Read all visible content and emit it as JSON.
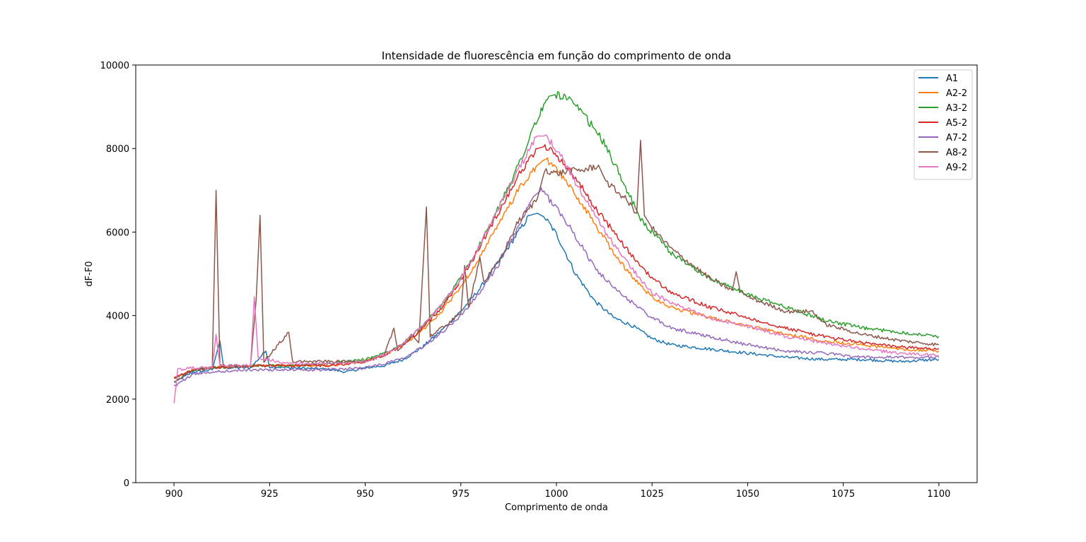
{
  "chart_data": {
    "type": "line",
    "title": "Intensidade de fluorescência em função do comprimento de onda",
    "xlabel": "Comprimento de onda",
    "ylabel": "dF-F0",
    "xlim": [
      890,
      1110
    ],
    "ylim": [
      0,
      10000
    ],
    "xticks": [
      900,
      925,
      950,
      975,
      1000,
      1025,
      1050,
      1075,
      1100
    ],
    "yticks": [
      0,
      2000,
      4000,
      6000,
      8000,
      10000
    ],
    "grid": false,
    "legend_position": "top-right",
    "series": [
      {
        "name": "A1",
        "color": "#1f77b4",
        "points": [
          [
            900,
            2400
          ],
          [
            905,
            2650
          ],
          [
            910,
            2700
          ],
          [
            912,
            3400
          ],
          [
            913,
            2750
          ],
          [
            920,
            2750
          ],
          [
            924,
            3150
          ],
          [
            925,
            2780
          ],
          [
            930,
            2750
          ],
          [
            940,
            2720
          ],
          [
            945,
            2650
          ],
          [
            950,
            2750
          ],
          [
            955,
            2800
          ],
          [
            960,
            2950
          ],
          [
            965,
            3250
          ],
          [
            970,
            3650
          ],
          [
            975,
            4100
          ],
          [
            980,
            4650
          ],
          [
            985,
            5300
          ],
          [
            990,
            6000
          ],
          [
            993,
            6400
          ],
          [
            995,
            6450
          ],
          [
            997,
            6350
          ],
          [
            1000,
            5950
          ],
          [
            1005,
            5000
          ],
          [
            1010,
            4350
          ],
          [
            1015,
            3950
          ],
          [
            1020,
            3750
          ],
          [
            1025,
            3450
          ],
          [
            1030,
            3300
          ],
          [
            1040,
            3200
          ],
          [
            1050,
            3100
          ],
          [
            1060,
            3000
          ],
          [
            1070,
            2950
          ],
          [
            1080,
            2950
          ],
          [
            1090,
            2900
          ],
          [
            1100,
            2950
          ]
        ]
      },
      {
        "name": "A2-2",
        "color": "#ff7f0e",
        "points": [
          [
            900,
            2500
          ],
          [
            905,
            2700
          ],
          [
            910,
            2750
          ],
          [
            920,
            2800
          ],
          [
            930,
            2800
          ],
          [
            940,
            2800
          ],
          [
            950,
            2900
          ],
          [
            955,
            3050
          ],
          [
            960,
            3300
          ],
          [
            965,
            3650
          ],
          [
            970,
            4100
          ],
          [
            975,
            4700
          ],
          [
            980,
            5400
          ],
          [
            985,
            6200
          ],
          [
            990,
            7000
          ],
          [
            995,
            7600
          ],
          [
            997,
            7750
          ],
          [
            1000,
            7500
          ],
          [
            1005,
            6900
          ],
          [
            1010,
            6200
          ],
          [
            1015,
            5500
          ],
          [
            1020,
            4900
          ],
          [
            1025,
            4450
          ],
          [
            1030,
            4200
          ],
          [
            1040,
            3950
          ],
          [
            1050,
            3750
          ],
          [
            1060,
            3550
          ],
          [
            1070,
            3400
          ],
          [
            1080,
            3300
          ],
          [
            1090,
            3200
          ],
          [
            1100,
            3150
          ]
        ]
      },
      {
        "name": "A3-2",
        "color": "#2ca02c",
        "points": [
          [
            900,
            2500
          ],
          [
            905,
            2700
          ],
          [
            910,
            2750
          ],
          [
            920,
            2800
          ],
          [
            930,
            2800
          ],
          [
            940,
            2850
          ],
          [
            950,
            2950
          ],
          [
            955,
            3100
          ],
          [
            960,
            3350
          ],
          [
            965,
            3750
          ],
          [
            970,
            4250
          ],
          [
            975,
            4900
          ],
          [
            980,
            5700
          ],
          [
            985,
            6600
          ],
          [
            990,
            7600
          ],
          [
            995,
            8700
          ],
          [
            998,
            9250
          ],
          [
            1000,
            9300
          ],
          [
            1003,
            9200
          ],
          [
            1008,
            8700
          ],
          [
            1012,
            8200
          ],
          [
            1017,
            7300
          ],
          [
            1022,
            6300
          ],
          [
            1025,
            6000
          ],
          [
            1030,
            5500
          ],
          [
            1040,
            4900
          ],
          [
            1050,
            4500
          ],
          [
            1060,
            4200
          ],
          [
            1070,
            3900
          ],
          [
            1080,
            3700
          ],
          [
            1090,
            3600
          ],
          [
            1100,
            3500
          ]
        ]
      },
      {
        "name": "A5-2",
        "color": "#d62728",
        "points": [
          [
            900,
            2500
          ],
          [
            905,
            2700
          ],
          [
            910,
            2750
          ],
          [
            920,
            2800
          ],
          [
            930,
            2800
          ],
          [
            940,
            2800
          ],
          [
            950,
            2900
          ],
          [
            955,
            3050
          ],
          [
            960,
            3300
          ],
          [
            965,
            3700
          ],
          [
            970,
            4200
          ],
          [
            975,
            4850
          ],
          [
            980,
            5650
          ],
          [
            985,
            6500
          ],
          [
            990,
            7350
          ],
          [
            995,
            8000
          ],
          [
            997,
            8050
          ],
          [
            1000,
            7850
          ],
          [
            1005,
            7300
          ],
          [
            1010,
            6600
          ],
          [
            1015,
            6000
          ],
          [
            1020,
            5400
          ],
          [
            1025,
            4900
          ],
          [
            1030,
            4550
          ],
          [
            1040,
            4200
          ],
          [
            1050,
            3950
          ],
          [
            1060,
            3700
          ],
          [
            1070,
            3500
          ],
          [
            1080,
            3350
          ],
          [
            1090,
            3250
          ],
          [
            1100,
            3200
          ]
        ]
      },
      {
        "name": "A7-2",
        "color": "#9467bd",
        "points": [
          [
            900,
            2300
          ],
          [
            905,
            2600
          ],
          [
            910,
            2650
          ],
          [
            920,
            2700
          ],
          [
            930,
            2700
          ],
          [
            940,
            2700
          ],
          [
            950,
            2750
          ],
          [
            955,
            2850
          ],
          [
            960,
            3000
          ],
          [
            965,
            3250
          ],
          [
            970,
            3600
          ],
          [
            975,
            4000
          ],
          [
            980,
            4550
          ],
          [
            985,
            5250
          ],
          [
            990,
            6100
          ],
          [
            994,
            6850
          ],
          [
            996,
            7000
          ],
          [
            1000,
            6600
          ],
          [
            1005,
            5900
          ],
          [
            1010,
            5150
          ],
          [
            1015,
            4650
          ],
          [
            1020,
            4300
          ],
          [
            1025,
            3950
          ],
          [
            1030,
            3700
          ],
          [
            1040,
            3500
          ],
          [
            1050,
            3300
          ],
          [
            1060,
            3150
          ],
          [
            1070,
            3100
          ],
          [
            1080,
            3000
          ],
          [
            1090,
            3000
          ],
          [
            1100,
            3000
          ]
        ]
      },
      {
        "name": "A8-2",
        "color": "#8c564b",
        "points": [
          [
            900,
            2400
          ],
          [
            905,
            2700
          ],
          [
            910,
            2750
          ],
          [
            911,
            7000
          ],
          [
            912,
            2800
          ],
          [
            920,
            2800
          ],
          [
            921.5,
            4400
          ],
          [
            922.5,
            6400
          ],
          [
            923.5,
            2900
          ],
          [
            930,
            3600
          ],
          [
            931,
            2900
          ],
          [
            940,
            2900
          ],
          [
            950,
            2900
          ],
          [
            955,
            3050
          ],
          [
            957.5,
            3700
          ],
          [
            958.5,
            3150
          ],
          [
            962,
            3550
          ],
          [
            964,
            3350
          ],
          [
            966,
            6600
          ],
          [
            967,
            3500
          ],
          [
            970,
            3700
          ],
          [
            975,
            4050
          ],
          [
            976,
            5200
          ],
          [
            977,
            4200
          ],
          [
            980,
            5400
          ],
          [
            981,
            4800
          ],
          [
            985,
            5300
          ],
          [
            990,
            6250
          ],
          [
            995,
            6800
          ],
          [
            997,
            7500
          ],
          [
            1000,
            7400
          ],
          [
            1003,
            7450
          ],
          [
            1008,
            7500
          ],
          [
            1011,
            7600
          ],
          [
            1013,
            7200
          ],
          [
            1018,
            6800
          ],
          [
            1021,
            6450
          ],
          [
            1022,
            8200
          ],
          [
            1023,
            6400
          ],
          [
            1025,
            6100
          ],
          [
            1030,
            5600
          ],
          [
            1040,
            4900
          ],
          [
            1046,
            4600
          ],
          [
            1047,
            5050
          ],
          [
            1048,
            4600
          ],
          [
            1050,
            4450
          ],
          [
            1060,
            4100
          ],
          [
            1067,
            4100
          ],
          [
            1070,
            3800
          ],
          [
            1080,
            3550
          ],
          [
            1090,
            3400
          ],
          [
            1100,
            3300
          ]
        ]
      },
      {
        "name": "A9-2",
        "color": "#e377c2",
        "points": [
          [
            900,
            1900
          ],
          [
            901,
            2700
          ],
          [
            905,
            2750
          ],
          [
            910,
            2750
          ],
          [
            911,
            3550
          ],
          [
            912,
            2800
          ],
          [
            920,
            2800
          ],
          [
            921,
            4450
          ],
          [
            922,
            3000
          ],
          [
            930,
            2850
          ],
          [
            940,
            2850
          ],
          [
            950,
            2900
          ],
          [
            955,
            3050
          ],
          [
            960,
            3350
          ],
          [
            965,
            3750
          ],
          [
            970,
            4250
          ],
          [
            975,
            4900
          ],
          [
            980,
            5700
          ],
          [
            985,
            6600
          ],
          [
            990,
            7500
          ],
          [
            995,
            8300
          ],
          [
            997,
            8300
          ],
          [
            1000,
            8000
          ],
          [
            1005,
            7200
          ],
          [
            1010,
            6400
          ],
          [
            1015,
            5700
          ],
          [
            1020,
            5100
          ],
          [
            1025,
            4550
          ],
          [
            1030,
            4300
          ],
          [
            1040,
            3950
          ],
          [
            1050,
            3750
          ],
          [
            1060,
            3500
          ],
          [
            1070,
            3350
          ],
          [
            1080,
            3200
          ],
          [
            1090,
            3100
          ],
          [
            1100,
            3050
          ]
        ]
      }
    ]
  }
}
